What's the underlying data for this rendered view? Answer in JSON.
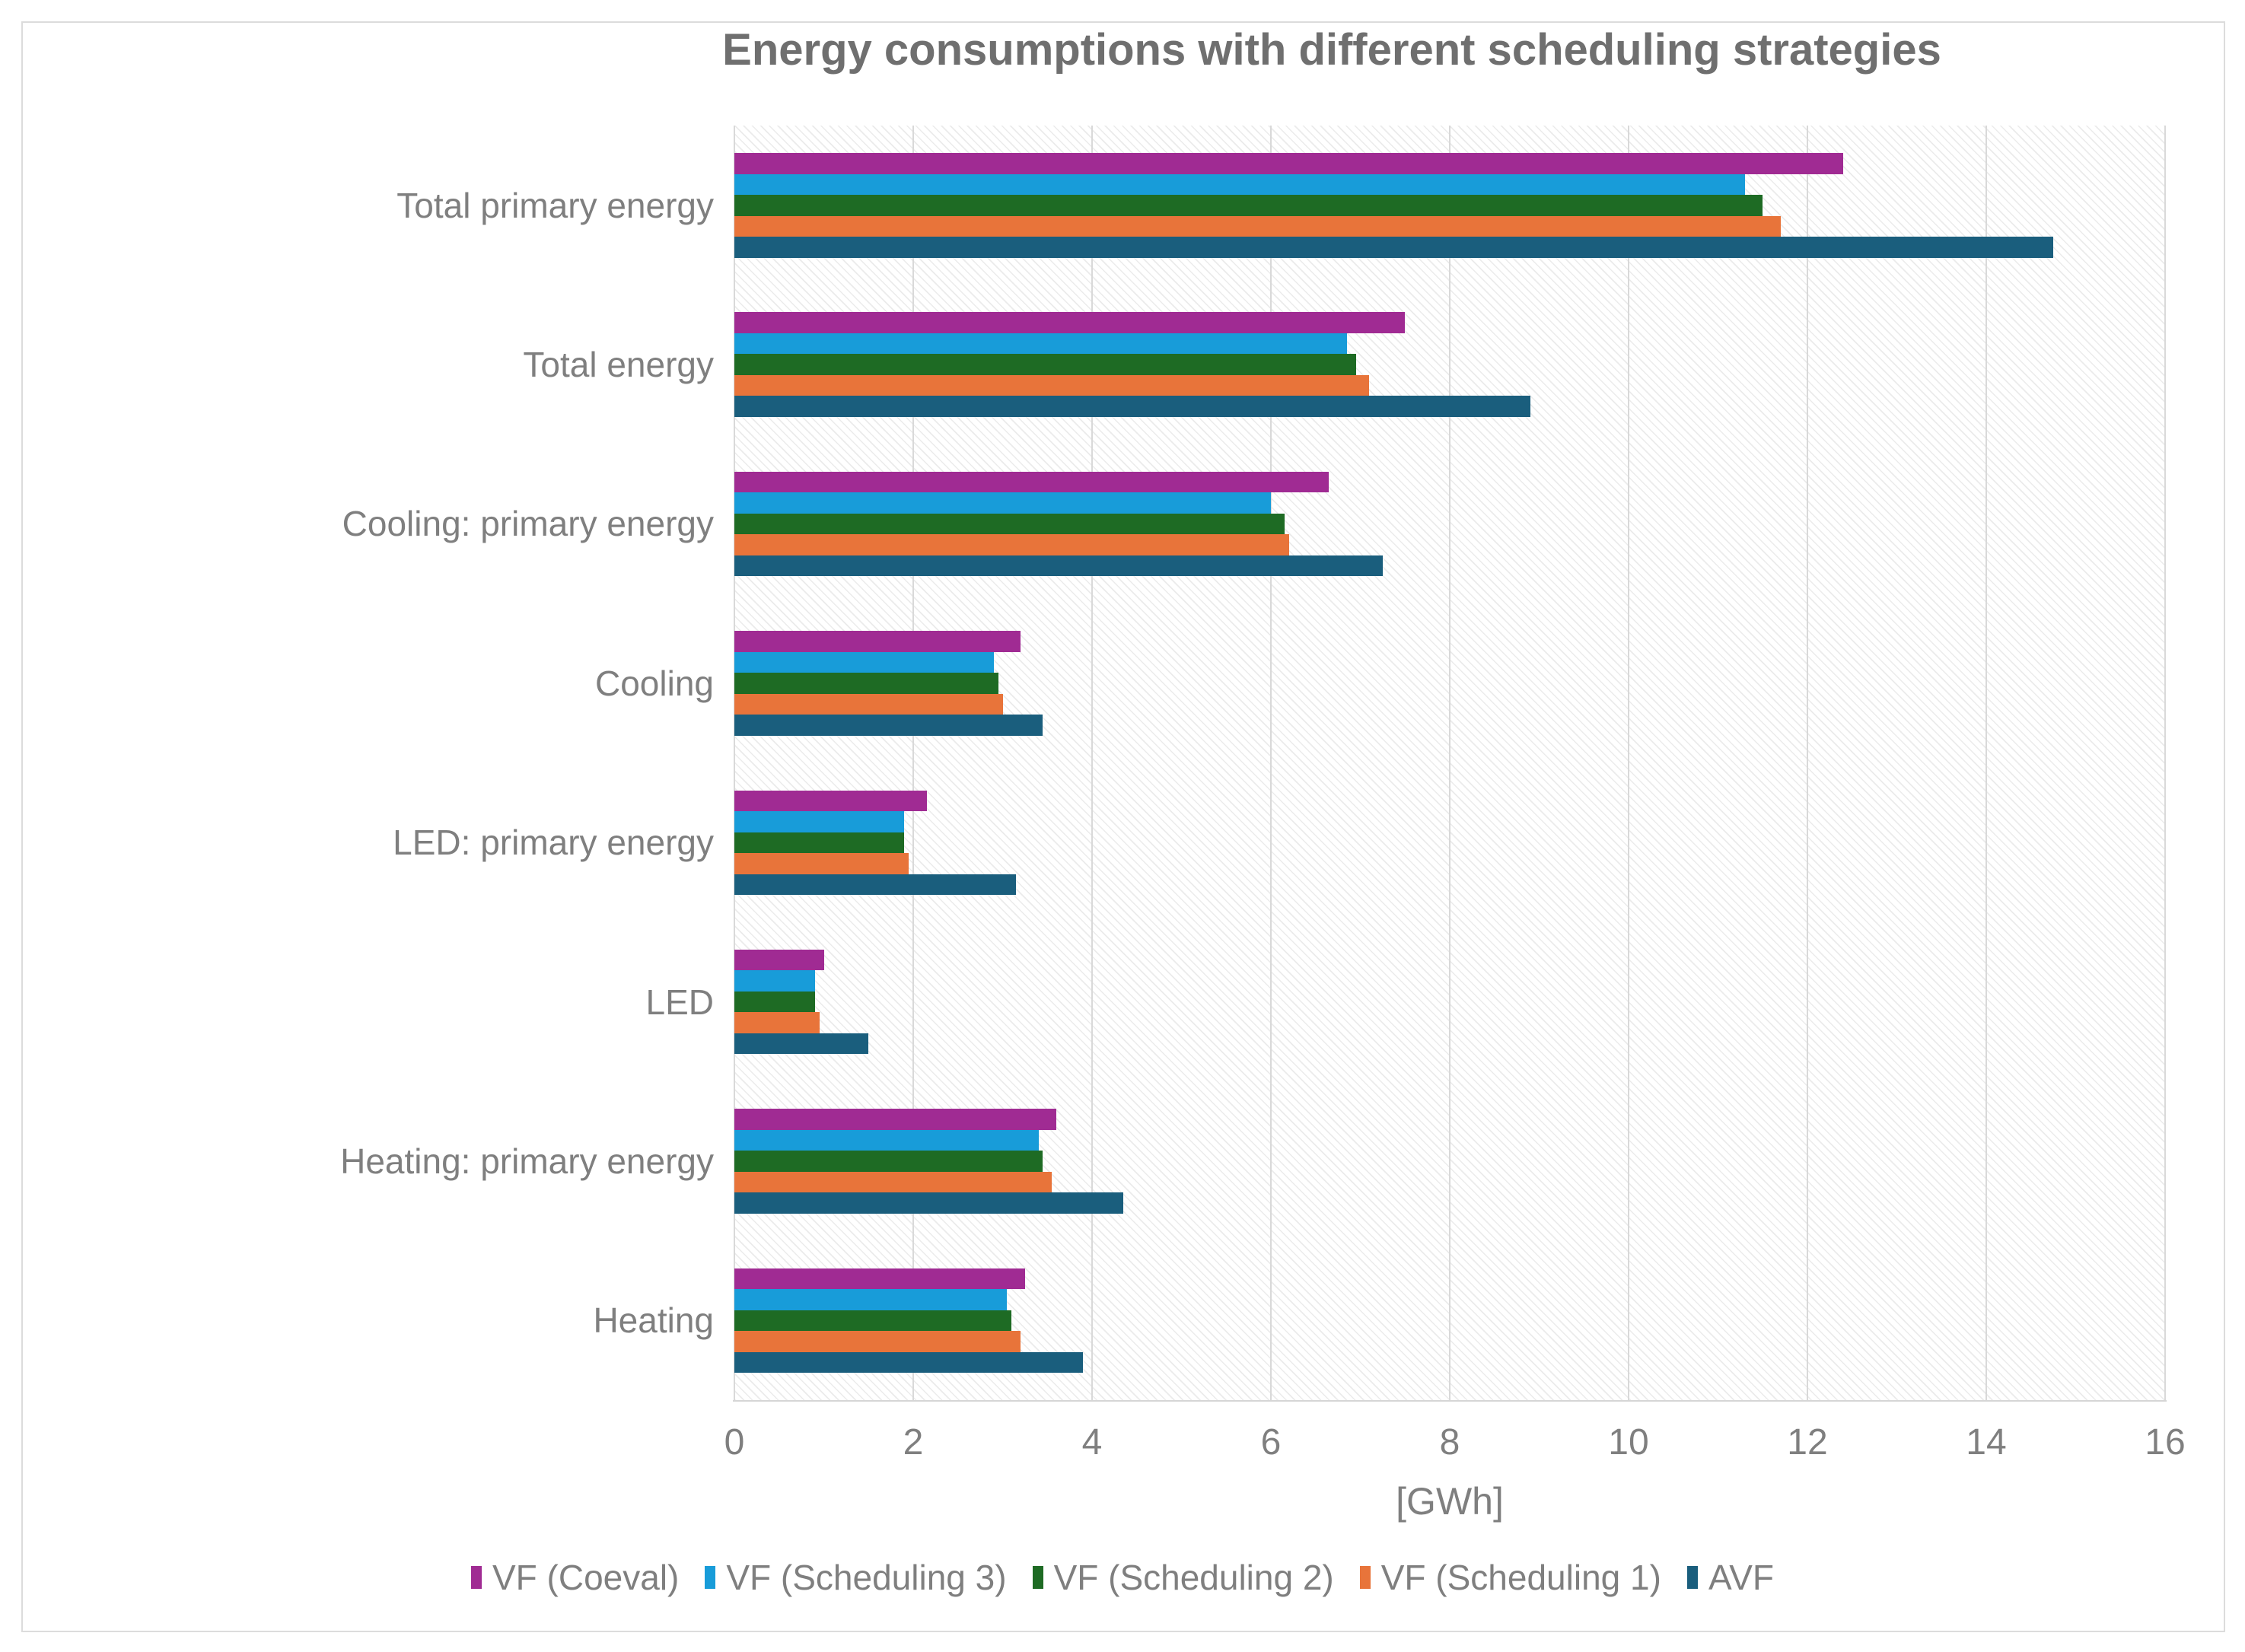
{
  "title": "Energy consumptions with different scheduling strategies",
  "x_axis": {
    "label": "[GWh]",
    "ticks": [
      0,
      2,
      4,
      6,
      8,
      10,
      12,
      14,
      16
    ],
    "min": 0,
    "max": 16
  },
  "colors": {
    "vf_coeval": "#A02B93",
    "vf_scheduling_3": "#189CD9",
    "vf_scheduling_2": "#1E6B24",
    "vf_scheduling_1": "#E8743A",
    "avf": "#1A5E7D",
    "gridline": "#D9D9D9",
    "text_gray": "#7F7F7F",
    "title_gray": "#6F6F6F"
  },
  "chart_data": {
    "type": "bar",
    "orientation": "horizontal",
    "title": "Energy consumptions with different scheduling strategies",
    "xlabel": "[GWh]",
    "xlim": [
      0,
      16
    ],
    "xticks": [
      0,
      2,
      4,
      6,
      8,
      10,
      12,
      14,
      16
    ],
    "grid": true,
    "plot_background": "diagonal-hatch",
    "legend_position": "bottom",
    "bar_order_note": "series listed top-to-bottom within each category group",
    "categories": [
      "Total primary energy",
      "Total energy",
      "Cooling: primary energy",
      "Cooling",
      "LED: primary energy",
      "LED",
      "Heating: primary energy",
      "Heating"
    ],
    "series": [
      {
        "name": "VF (Coeval)",
        "color": "#A02B93",
        "values": [
          12.4,
          7.5,
          6.65,
          3.2,
          2.15,
          1.0,
          3.6,
          3.25
        ]
      },
      {
        "name": "VF (Scheduling 3)",
        "color": "#189CD9",
        "values": [
          11.3,
          6.85,
          6.0,
          2.9,
          1.9,
          0.9,
          3.4,
          3.05
        ]
      },
      {
        "name": "VF (Scheduling 2)",
        "color": "#1E6B24",
        "values": [
          11.5,
          6.95,
          6.15,
          2.95,
          1.9,
          0.9,
          3.45,
          3.1
        ]
      },
      {
        "name": "VF (Scheduling 1)",
        "color": "#E8743A",
        "values": [
          11.7,
          7.1,
          6.2,
          3.0,
          1.95,
          0.95,
          3.55,
          3.2
        ]
      },
      {
        "name": "AVF",
        "color": "#1A5E7D",
        "values": [
          14.75,
          8.9,
          7.25,
          3.45,
          3.15,
          1.5,
          4.35,
          3.9
        ]
      }
    ]
  }
}
